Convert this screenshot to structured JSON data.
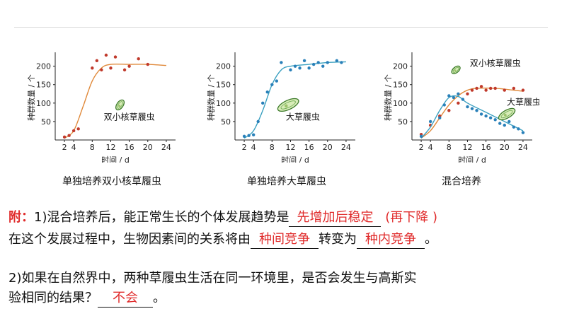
{
  "charts": [
    {
      "caption": "单独培养双小核草履虫",
      "ylabel": "种群数量 / 个",
      "xlabel": "时间 / d",
      "annotation": "双小核草履虫",
      "curve_color": "#e0893a",
      "point_color": "#c0392b"
    },
    {
      "caption": "单独培养大草履虫",
      "ylabel": "种群数量 / 个",
      "xlabel": "时间 / d",
      "annotation": "大草履虫",
      "curve_color": "#3aa0c0",
      "point_color": "#2980b9"
    },
    {
      "caption": "混合培养",
      "ylabel": "种群数量 / 个",
      "xlabel": "时间 / d",
      "annotation_a": "双小核草履虫",
      "annotation_b": "大草履虫",
      "curve_color_a": "#e0893a",
      "point_color_a": "#c0392b",
      "curve_color_b": "#3aa0c0",
      "point_color_b": "#2980b9"
    }
  ],
  "chart_data": [
    {
      "type": "scatter",
      "title": "单独培养双小核草履虫",
      "xlabel": "时间 / d",
      "ylabel": "种群数量 / 个",
      "xlim": [
        0,
        26
      ],
      "ylim": [
        0,
        230
      ],
      "xticks": [
        2,
        4,
        8,
        12,
        16,
        20,
        24
      ],
      "yticks": [
        50,
        100,
        150,
        200
      ],
      "series": [
        {
          "name": "双小核草履虫",
          "points": [
            [
              2,
              8
            ],
            [
              3,
              12
            ],
            [
              4,
              25
            ],
            [
              5,
              30
            ],
            [
              8,
              195
            ],
            [
              9,
              215
            ],
            [
              10,
              190
            ],
            [
              11,
              230
            ],
            [
              12,
              195
            ],
            [
              13,
              225
            ],
            [
              15,
              190
            ],
            [
              16,
              200
            ],
            [
              18,
              220
            ],
            [
              20,
              205
            ]
          ],
          "curve": [
            [
              2,
              5
            ],
            [
              4,
              25
            ],
            [
              6,
              90
            ],
            [
              8,
              160
            ],
            [
              10,
              195
            ],
            [
              12,
              205
            ],
            [
              16,
              205
            ],
            [
              20,
              205
            ],
            [
              24,
              202
            ]
          ]
        }
      ]
    },
    {
      "type": "scatter",
      "title": "单独培养大草履虫",
      "xlabel": "时间 / d",
      "ylabel": "种群数量 / 个",
      "xlim": [
        0,
        26
      ],
      "ylim": [
        0,
        230
      ],
      "xticks": [
        2,
        4,
        8,
        12,
        16,
        20,
        24
      ],
      "yticks": [
        50,
        100,
        150,
        200
      ],
      "series": [
        {
          "name": "大草履虫",
          "points": [
            [
              2,
              10
            ],
            [
              3,
              12
            ],
            [
              4,
              14
            ],
            [
              5,
              50
            ],
            [
              6,
              100
            ],
            [
              7,
              130
            ],
            [
              8,
              150
            ],
            [
              9,
              160
            ],
            [
              10,
              210
            ],
            [
              12,
              190
            ],
            [
              13,
              200
            ],
            [
              14,
              195
            ],
            [
              15,
              215
            ],
            [
              16,
              195
            ],
            [
              17,
              205
            ],
            [
              18,
              210
            ],
            [
              19,
              200
            ],
            [
              20,
              210
            ],
            [
              22,
              215
            ],
            [
              23,
              210
            ]
          ],
          "curve": [
            [
              2,
              5
            ],
            [
              4,
              25
            ],
            [
              6,
              80
            ],
            [
              8,
              150
            ],
            [
              10,
              190
            ],
            [
              12,
              200
            ],
            [
              16,
              205
            ],
            [
              20,
              210
            ],
            [
              24,
              212
            ]
          ]
        }
      ]
    },
    {
      "type": "scatter",
      "title": "混合培养",
      "xlabel": "时间 / d",
      "ylabel": "种群数量 / 个",
      "xlim": [
        0,
        26
      ],
      "ylim": [
        0,
        230
      ],
      "xticks": [
        2,
        4,
        8,
        12,
        16,
        20,
        24
      ],
      "yticks": [
        50,
        100,
        150,
        200
      ],
      "series": [
        {
          "name": "双小核草履虫",
          "points": [
            [
              2,
              15
            ],
            [
              4,
              40
            ],
            [
              6,
              65
            ],
            [
              8,
              80
            ],
            [
              10,
              100
            ],
            [
              12,
              125
            ],
            [
              13,
              135
            ],
            [
              14,
              140
            ],
            [
              15,
              145
            ],
            [
              16,
              135
            ],
            [
              17,
              140
            ],
            [
              18,
              140
            ],
            [
              20,
              135
            ],
            [
              22,
              140
            ],
            [
              24,
              135
            ]
          ],
          "curve": [
            [
              2,
              5
            ],
            [
              4,
              25
            ],
            [
              6,
              60
            ],
            [
              8,
              95
            ],
            [
              10,
              120
            ],
            [
              12,
              135
            ],
            [
              14,
              140
            ],
            [
              18,
              140
            ],
            [
              22,
              135
            ],
            [
              24,
              132
            ]
          ]
        },
        {
          "name": "大草履虫",
          "points": [
            [
              2,
              10
            ],
            [
              4,
              50
            ],
            [
              6,
              60
            ],
            [
              7,
              95
            ],
            [
              8,
              120
            ],
            [
              9,
              115
            ],
            [
              10,
              125
            ],
            [
              11,
              110
            ],
            [
              12,
              90
            ],
            [
              13,
              85
            ],
            [
              14,
              80
            ],
            [
              15,
              70
            ],
            [
              16,
              65
            ],
            [
              17,
              60
            ],
            [
              18,
              55
            ],
            [
              19,
              45
            ],
            [
              20,
              40
            ],
            [
              21,
              50
            ],
            [
              22,
              35
            ],
            [
              23,
              30
            ],
            [
              24,
              20
            ]
          ],
          "curve": [
            [
              2,
              5
            ],
            [
              4,
              35
            ],
            [
              6,
              80
            ],
            [
              8,
              115
            ],
            [
              10,
              118
            ],
            [
              12,
              100
            ],
            [
              16,
              75
            ],
            [
              20,
              50
            ],
            [
              24,
              25
            ]
          ]
        }
      ]
    }
  ],
  "qa": {
    "q1_prefix": "附：",
    "q1_line1": "1)混合培养后，能正常生长的个体发展趋势是",
    "q1_answer1": "先增加后稳定",
    "q1_line1_suffix": " (再下降 )",
    "q1_line2_pre": "在这个发展过程中，生物因素间的关系将由",
    "q1_answer2": "种间竞争",
    "q1_line2_mid": "转变为",
    "q1_answer3": "种内竞争",
    "q1_line2_end": "。",
    "q2_line1": "2)如果在自然界中，两种草履虫生活在同一环境里，是否会发生与高斯实",
    "q2_line2_pre": "验相同的结果？",
    "q2_answer": "不会",
    "q2_line2_end": "。"
  }
}
